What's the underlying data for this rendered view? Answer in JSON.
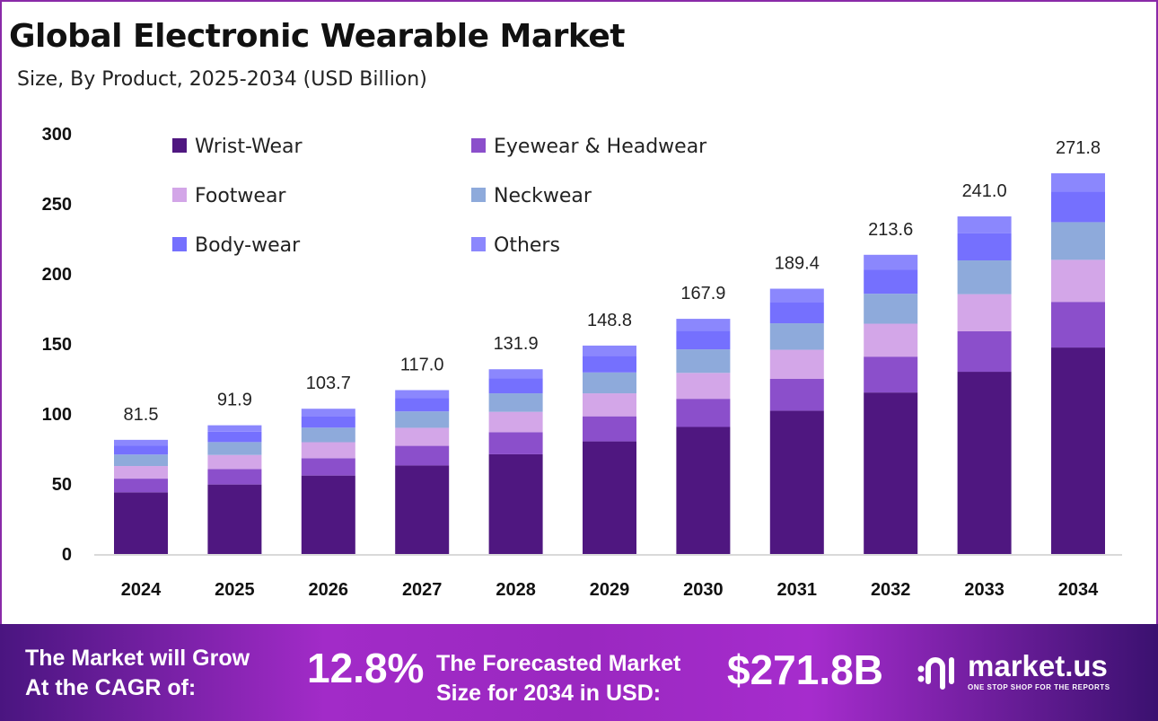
{
  "title": "Global Electronic Wearable Market",
  "subtitle": "Size, By Product, 2025-2034 (USD Billion)",
  "chart_data": {
    "type": "bar",
    "stacked": true,
    "categories": [
      "2024",
      "2025",
      "2026",
      "2027",
      "2028",
      "2029",
      "2030",
      "2031",
      "2032",
      "2033",
      "2034"
    ],
    "totals": [
      81.5,
      91.9,
      103.7,
      117.0,
      131.9,
      148.8,
      167.9,
      189.4,
      213.6,
      241.0,
      271.8
    ],
    "series": [
      {
        "name": "Wrist-Wear",
        "color": "#4f1780",
        "values": [
          44.0,
          49.6,
          56.0,
          63.2,
          71.2,
          80.4,
          90.7,
          102.3,
          115.3,
          130.1,
          147.4
        ]
      },
      {
        "name": "Eyewear & Headwear",
        "color": "#8b4fcb",
        "values": [
          9.8,
          11.0,
          12.4,
          14.0,
          15.8,
          17.9,
          20.1,
          22.7,
          25.6,
          28.9,
          32.6
        ]
      },
      {
        "name": "Footwear",
        "color": "#d3a6e8",
        "values": [
          9.0,
          10.1,
          11.4,
          12.9,
          14.5,
          16.4,
          18.5,
          20.8,
          23.5,
          26.5,
          30.0
        ]
      },
      {
        "name": "Neckwear",
        "color": "#8eaadb",
        "values": [
          8.2,
          9.2,
          10.4,
          11.7,
          13.2,
          14.9,
          16.8,
          18.9,
          21.4,
          24.1,
          26.9
        ]
      },
      {
        "name": "Body-wear",
        "color": "#7570fe",
        "values": [
          6.5,
          7.4,
          8.3,
          9.4,
          10.6,
          11.8,
          13.4,
          15.2,
          17.1,
          19.3,
          21.8
        ]
      },
      {
        "name": "Others",
        "color": "#8b87fd",
        "values": [
          4.0,
          4.6,
          5.2,
          5.8,
          6.6,
          7.4,
          8.4,
          9.5,
          10.7,
          12.1,
          13.1
        ]
      }
    ],
    "yticks": [
      0,
      50,
      100,
      150,
      200,
      250,
      300
    ],
    "ylim": [
      0,
      300
    ],
    "grid": false,
    "legend": "top-left"
  },
  "footer": {
    "cagr_label_1": "The Market will Grow",
    "cagr_label_2": "At the CAGR of:",
    "cagr_value": "12.8%",
    "forecast_label_1": "The Forecasted Market",
    "forecast_label_2": "Size for 2034 in USD:",
    "forecast_value": "$271.8B",
    "brand": "market.us",
    "tagline": "ONE STOP SHOP FOR THE REPORTS"
  }
}
